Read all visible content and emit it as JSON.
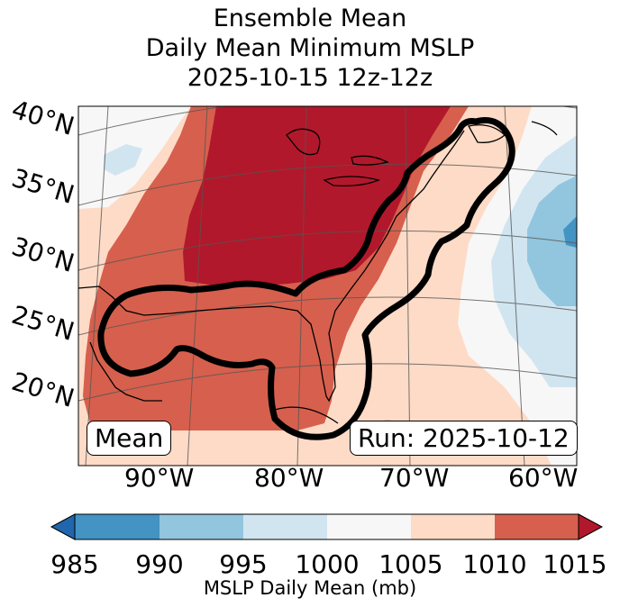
{
  "title": {
    "line1": "Ensemble Mean",
    "line2": "Daily Mean Minimum MSLP",
    "line3": "2025-10-15 12z-12z"
  },
  "map": {
    "lat_labels": [
      "40°N",
      "35°N",
      "30°N",
      "25°N",
      "20°N"
    ],
    "lon_labels": [
      "90°W",
      "80°W",
      "70°W",
      "60°W"
    ],
    "annotation_left": "Mean",
    "annotation_right": "Run: 2025-10-12",
    "contour_color": "#000000"
  },
  "colorbar": {
    "label": "MSLP Daily Mean (mb)",
    "ticks": [
      "985",
      "990",
      "995",
      "1000",
      "1005",
      "1010",
      "1015"
    ],
    "bins": [
      {
        "range": "<985",
        "color": "#2166ac"
      },
      {
        "range": "985-990",
        "color": "#4393c3"
      },
      {
        "range": "990-995",
        "color": "#92c5de"
      },
      {
        "range": "995-1000",
        "color": "#d1e5f0"
      },
      {
        "range": "1000-1005",
        "color": "#f7f7f7"
      },
      {
        "range": "1005-1010",
        "color": "#fddbc7"
      },
      {
        "range": "1010-1015",
        "color": "#d6604d"
      },
      {
        "range": ">1015",
        "color": "#b2182b"
      }
    ]
  }
}
